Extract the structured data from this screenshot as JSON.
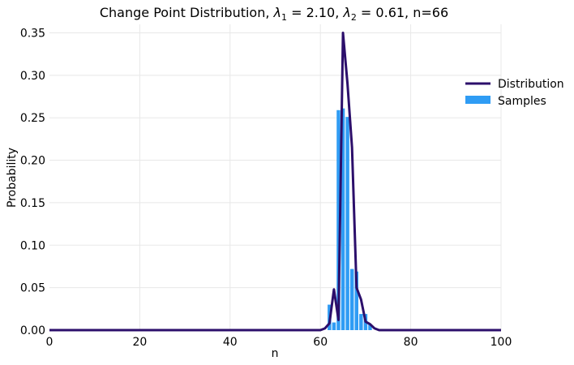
{
  "chart_data": {
    "type": "bar+line",
    "title": {
      "prefix": "Change Point Distribution, ",
      "lambda1_value": "2.10",
      "lambda2_value": "0.61",
      "n_part": "n=66"
    },
    "xlabel": "n",
    "ylabel": "Probability",
    "xlim": [
      0,
      100
    ],
    "ylim": [
      0,
      0.36
    ],
    "xticks": [
      0,
      20,
      40,
      60,
      80,
      100
    ],
    "xtick_labels": [
      "0",
      "20",
      "40",
      "60",
      "80",
      "100"
    ],
    "yticks": [
      0,
      0.05,
      0.1,
      0.15,
      0.2,
      0.25,
      0.3,
      0.35
    ],
    "ytick_labels": [
      "0.00",
      "0.05",
      "0.10",
      "0.15",
      "0.20",
      "0.25",
      "0.30",
      "0.35"
    ],
    "grid": true,
    "legend_position": "right",
    "colors": {
      "distribution": "#2c0f6b",
      "samples": "#2f9cf4",
      "grid": "#e8e8e8"
    },
    "series": [
      {
        "name": "Distribution",
        "kind": "line",
        "x": [
          0,
          60,
          61,
          62,
          63,
          64,
          65,
          66,
          67,
          68,
          69,
          70,
          71,
          72,
          73,
          100
        ],
        "y": [
          0,
          0,
          0.002,
          0.008,
          0.048,
          0.012,
          0.35,
          0.29,
          0.215,
          0.05,
          0.036,
          0.01,
          0.007,
          0.002,
          0,
          0
        ]
      },
      {
        "name": "Samples",
        "kind": "bar",
        "x": [
          62,
          63,
          64,
          65,
          66,
          67,
          68,
          69,
          70,
          71
        ],
        "y": [
          0.03,
          0.009,
          0.259,
          0.261,
          0.251,
          0.072,
          0.069,
          0.019,
          0.019,
          0.007
        ]
      }
    ]
  }
}
